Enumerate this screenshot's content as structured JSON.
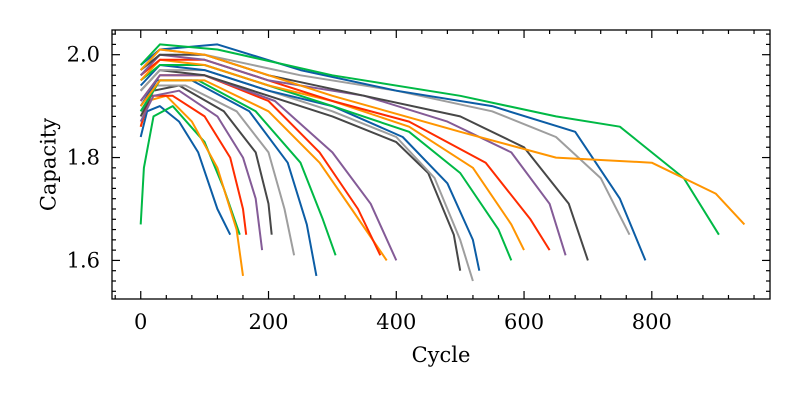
{
  "chart_data": {
    "type": "line",
    "title": "",
    "xlabel": "Cycle",
    "ylabel": "Capacity",
    "xlim": [
      -45,
      985
    ],
    "ylim": [
      1.525,
      2.048
    ],
    "x_ticks": [
      0,
      200,
      400,
      600,
      800
    ],
    "y_ticks": [
      1.6,
      1.8,
      2.0
    ],
    "x_tick_labels": [
      "0",
      "200",
      "400",
      "600",
      "800"
    ],
    "y_tick_labels": [
      "1.6",
      "1.8",
      "2.0"
    ],
    "grid": false,
    "legend": "none",
    "series_colors": [
      "#0c5da5",
      "#00b945",
      "#ff9500",
      "#ff2c00",
      "#845b97",
      "#474747",
      "#9e9e9e"
    ],
    "series": [
      {
        "x": [
          0,
          10,
          30,
          60,
          90,
          120,
          140
        ],
        "y": [
          1.84,
          1.89,
          1.9,
          1.87,
          1.81,
          1.7,
          1.65
        ]
      },
      {
        "x": [
          0,
          5,
          20,
          50,
          100,
          130,
          155
        ],
        "y": [
          1.67,
          1.78,
          1.88,
          1.9,
          1.83,
          1.74,
          1.65
        ]
      },
      {
        "x": [
          0,
          10,
          40,
          80,
          120,
          150,
          160
        ],
        "y": [
          1.86,
          1.91,
          1.92,
          1.87,
          1.78,
          1.66,
          1.57
        ]
      },
      {
        "x": [
          0,
          15,
          50,
          100,
          140,
          160,
          165
        ],
        "y": [
          1.86,
          1.92,
          1.92,
          1.88,
          1.8,
          1.7,
          1.65
        ]
      },
      {
        "x": [
          0,
          20,
          60,
          120,
          160,
          180,
          190
        ],
        "y": [
          1.87,
          1.92,
          1.93,
          1.88,
          1.8,
          1.72,
          1.62
        ]
      },
      {
        "x": [
          0,
          20,
          60,
          130,
          180,
          200,
          205
        ],
        "y": [
          1.88,
          1.93,
          1.94,
          1.89,
          1.81,
          1.71,
          1.65
        ]
      },
      {
        "x": [
          0,
          25,
          70,
          150,
          200,
          225,
          240
        ],
        "y": [
          1.89,
          1.94,
          1.94,
          1.89,
          1.81,
          1.7,
          1.61
        ]
      },
      {
        "x": [
          0,
          25,
          80,
          170,
          230,
          260,
          275
        ],
        "y": [
          1.9,
          1.95,
          1.95,
          1.89,
          1.79,
          1.67,
          1.57
        ]
      },
      {
        "x": [
          0,
          30,
          90,
          180,
          250,
          285,
          305
        ],
        "y": [
          1.89,
          1.95,
          1.95,
          1.89,
          1.79,
          1.68,
          1.61
        ]
      },
      {
        "x": [
          0,
          30,
          100,
          200,
          280,
          330,
          385
        ],
        "y": [
          1.9,
          1.95,
          1.95,
          1.89,
          1.79,
          1.7,
          1.6
        ]
      },
      {
        "x": [
          0,
          30,
          100,
          200,
          280,
          340,
          375
        ],
        "y": [
          1.91,
          1.96,
          1.96,
          1.91,
          1.81,
          1.7,
          1.61
        ]
      },
      {
        "x": [
          0,
          30,
          100,
          210,
          300,
          360,
          400
        ],
        "y": [
          1.91,
          1.96,
          1.96,
          1.91,
          1.81,
          1.71,
          1.6
        ]
      },
      {
        "x": [
          0,
          30,
          100,
          200,
          300,
          400,
          450,
          490,
          500
        ],
        "y": [
          1.93,
          1.97,
          1.96,
          1.92,
          1.88,
          1.83,
          1.77,
          1.65,
          1.58
        ]
      },
      {
        "x": [
          0,
          30,
          100,
          200,
          300,
          400,
          460,
          500,
          520
        ],
        "y": [
          1.93,
          1.97,
          1.97,
          1.93,
          1.89,
          1.84,
          1.76,
          1.64,
          1.56
        ]
      },
      {
        "x": [
          0,
          30,
          100,
          200,
          300,
          410,
          480,
          520,
          530
        ],
        "y": [
          1.94,
          1.98,
          1.97,
          1.93,
          1.9,
          1.84,
          1.75,
          1.64,
          1.58
        ]
      },
      {
        "x": [
          0,
          30,
          100,
          200,
          300,
          420,
          500,
          560,
          580
        ],
        "y": [
          1.95,
          1.98,
          1.98,
          1.94,
          1.9,
          1.85,
          1.77,
          1.66,
          1.6
        ]
      },
      {
        "x": [
          0,
          30,
          100,
          200,
          300,
          420,
          520,
          580,
          600
        ],
        "y": [
          1.95,
          1.99,
          1.98,
          1.94,
          1.91,
          1.86,
          1.78,
          1.67,
          1.62
        ]
      },
      {
        "x": [
          0,
          30,
          100,
          200,
          300,
          420,
          540,
          610,
          640
        ],
        "y": [
          1.96,
          1.99,
          1.99,
          1.95,
          1.91,
          1.87,
          1.79,
          1.68,
          1.62
        ]
      },
      {
        "x": [
          0,
          30,
          100,
          200,
          350,
          480,
          580,
          640,
          665
        ],
        "y": [
          1.96,
          2.0,
          1.99,
          1.95,
          1.92,
          1.87,
          1.81,
          1.71,
          1.61
        ]
      },
      {
        "x": [
          0,
          30,
          100,
          200,
          350,
          500,
          600,
          670,
          700
        ],
        "y": [
          1.97,
          2.0,
          2.0,
          1.96,
          1.92,
          1.88,
          1.82,
          1.71,
          1.6
        ]
      },
      {
        "x": [
          0,
          30,
          100,
          250,
          400,
          550,
          650,
          720,
          765
        ],
        "y": [
          1.97,
          2.01,
          2.0,
          1.96,
          1.93,
          1.89,
          1.84,
          1.76,
          1.65
        ]
      },
      {
        "x": [
          0,
          30,
          120,
          250,
          400,
          550,
          680,
          750,
          790
        ],
        "y": [
          1.98,
          2.01,
          2.02,
          1.97,
          1.93,
          1.9,
          1.85,
          1.72,
          1.6
        ]
      },
      {
        "x": [
          0,
          30,
          120,
          300,
          500,
          650,
          750,
          850,
          905
        ],
        "y": [
          1.98,
          2.02,
          2.01,
          1.96,
          1.92,
          1.88,
          1.86,
          1.76,
          1.65
        ]
      },
      {
        "x": [
          0,
          30,
          100,
          300,
          500,
          650,
          800,
          900,
          945
        ],
        "y": [
          1.97,
          2.01,
          2.0,
          1.92,
          1.85,
          1.8,
          1.79,
          1.73,
          1.67
        ]
      }
    ]
  }
}
